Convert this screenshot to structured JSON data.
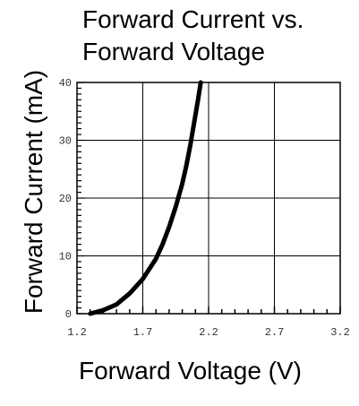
{
  "chart_data": {
    "type": "line",
    "title_lines": [
      "Forward Current vs.",
      "Forward Voltage"
    ],
    "xlabel": "Forward Voltage (V)",
    "ylabel": "Forward Current (mA)",
    "xlim": [
      1.2,
      3.2
    ],
    "ylim": [
      0,
      40
    ],
    "x_ticks": [
      1.2,
      1.7,
      2.2,
      2.7,
      3.2
    ],
    "x_tick_labels": [
      "1.2",
      "1.7",
      "2.2",
      "2.7",
      "3.2"
    ],
    "y_ticks": [
      0,
      10,
      20,
      30,
      40
    ],
    "y_tick_labels": [
      "0",
      "10",
      "20",
      "30",
      "40"
    ],
    "grid": true,
    "line_color": "#000000",
    "series": [
      {
        "x": [
          1.3,
          1.4,
          1.5,
          1.6,
          1.7,
          1.8,
          1.85,
          1.9,
          1.95,
          2.0,
          2.03,
          2.06,
          2.09,
          2.12,
          2.14
        ],
        "y": [
          0.0,
          0.6,
          1.6,
          3.5,
          6.0,
          9.5,
          12.0,
          15.0,
          18.5,
          22.5,
          25.5,
          29.0,
          33.0,
          37.0,
          40.0
        ]
      }
    ]
  }
}
